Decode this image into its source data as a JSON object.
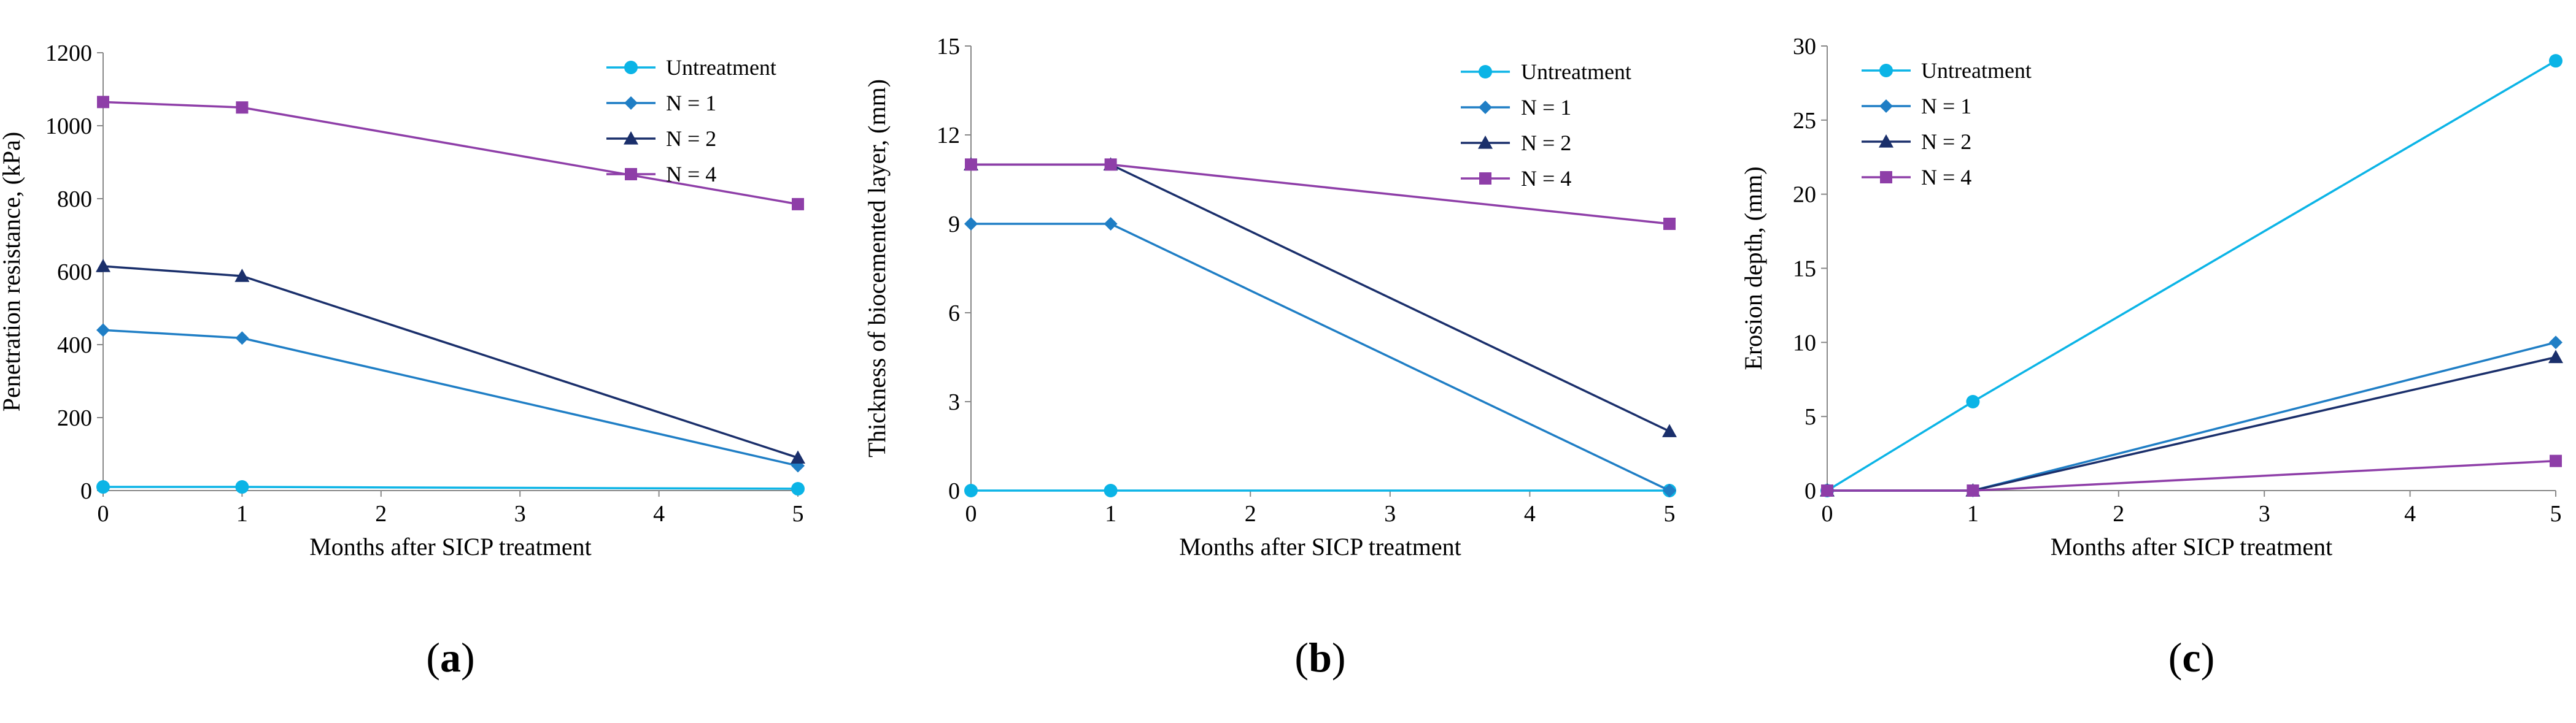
{
  "series_styles": [
    {
      "name": "Untreatment",
      "color": "#0BB4E6",
      "marker": "circle"
    },
    {
      "name": "N = 1",
      "color": "#1F7EC5",
      "marker": "diamond"
    },
    {
      "name": "N = 2",
      "color": "#1A2F6B",
      "marker": "triangle"
    },
    {
      "name": "N = 4",
      "color": "#8E3EA8",
      "marker": "square"
    }
  ],
  "chart_data": [
    {
      "type": "line",
      "panel_label": {
        "open": "(",
        "letter": "a",
        "close": ")"
      },
      "xlabel": "Months after SICP treatment",
      "ylabel": "Penetration resistance, (kPa)",
      "xlim": [
        0,
        5
      ],
      "ylim": [
        0,
        1200
      ],
      "xticks": [
        0,
        1,
        2,
        3,
        4,
        5
      ],
      "yticks": [
        0,
        200,
        400,
        600,
        800,
        1000,
        1200
      ],
      "grid": false,
      "legend_placement": "top-right",
      "x": [
        0,
        1,
        5
      ],
      "series": [
        {
          "name": "Untreatment",
          "values": [
            10,
            10,
            5
          ]
        },
        {
          "name": "N = 1",
          "values": [
            440,
            418,
            68
          ]
        },
        {
          "name": "N = 2",
          "values": [
            615,
            588,
            90
          ]
        },
        {
          "name": "N = 4",
          "values": [
            1065,
            1050,
            785
          ]
        }
      ]
    },
    {
      "type": "line",
      "panel_label": {
        "open": "(",
        "letter": "b",
        "close": ")"
      },
      "xlabel": "Months after SICP treatment",
      "ylabel": "Thickness of biocemented layer, (mm)",
      "xlim": [
        0,
        5
      ],
      "ylim": [
        0,
        15
      ],
      "xticks": [
        0,
        1,
        2,
        3,
        4,
        5
      ],
      "yticks": [
        0,
        3,
        6,
        9,
        12,
        15
      ],
      "grid": false,
      "legend_placement": "top-right",
      "x": [
        0,
        1,
        5
      ],
      "series": [
        {
          "name": "Untreatment",
          "values": [
            0,
            0,
            0
          ]
        },
        {
          "name": "N = 1",
          "values": [
            9,
            9,
            0
          ]
        },
        {
          "name": "N = 2",
          "values": [
            11,
            11,
            2
          ]
        },
        {
          "name": "N = 4",
          "values": [
            11,
            11,
            9
          ]
        }
      ]
    },
    {
      "type": "line",
      "panel_label": {
        "open": "(",
        "letter": "c",
        "close": ")"
      },
      "xlabel": "Months after SICP treatment",
      "ylabel": "Erosion depth, (mm)",
      "xlim": [
        0,
        5
      ],
      "ylim": [
        0,
        30
      ],
      "xticks": [
        0,
        1,
        2,
        3,
        4,
        5
      ],
      "yticks": [
        0,
        5,
        10,
        15,
        20,
        25,
        30
      ],
      "grid": false,
      "legend_placement": "top-left",
      "x": [
        0,
        1,
        5
      ],
      "series": [
        {
          "name": "Untreatment",
          "values": [
            0,
            6,
            29
          ]
        },
        {
          "name": "N = 1",
          "values": [
            0,
            0,
            10
          ]
        },
        {
          "name": "N = 2",
          "values": [
            0,
            0,
            9
          ]
        },
        {
          "name": "N = 4",
          "values": [
            0,
            0,
            2
          ]
        }
      ]
    }
  ]
}
